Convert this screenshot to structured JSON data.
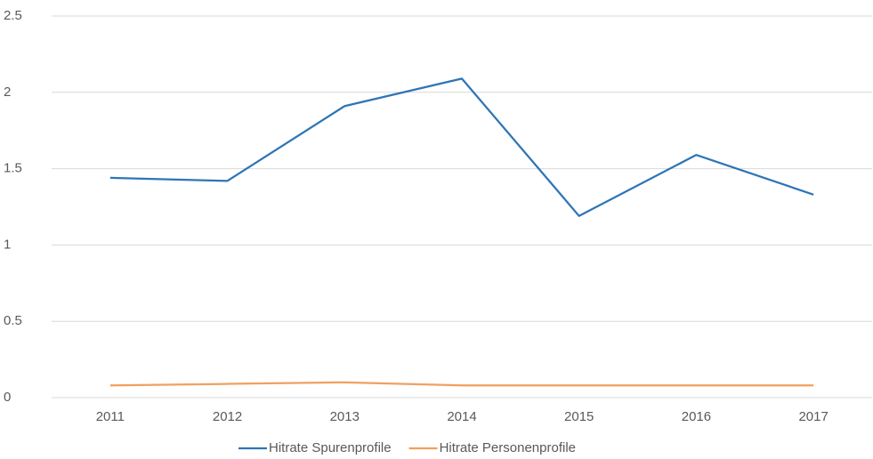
{
  "chart_data": {
    "type": "line",
    "categories": [
      "2011",
      "2012",
      "2013",
      "2014",
      "2015",
      "2016",
      "2017"
    ],
    "series": [
      {
        "name": "Hitrate Spurenprofile",
        "color": "#2e75b6",
        "values": [
          1.44,
          1.42,
          1.91,
          2.09,
          1.19,
          1.59,
          1.33
        ]
      },
      {
        "name": "Hitrate Personenprofile",
        "color": "#f0a060",
        "values": [
          0.08,
          0.09,
          0.1,
          0.08,
          0.08,
          0.08,
          0.08
        ]
      }
    ],
    "ylim": [
      0,
      2.5
    ],
    "yticks": [
      0,
      0.5,
      1,
      1.5,
      2,
      2.5
    ],
    "grid": true,
    "legend": "bottom"
  }
}
